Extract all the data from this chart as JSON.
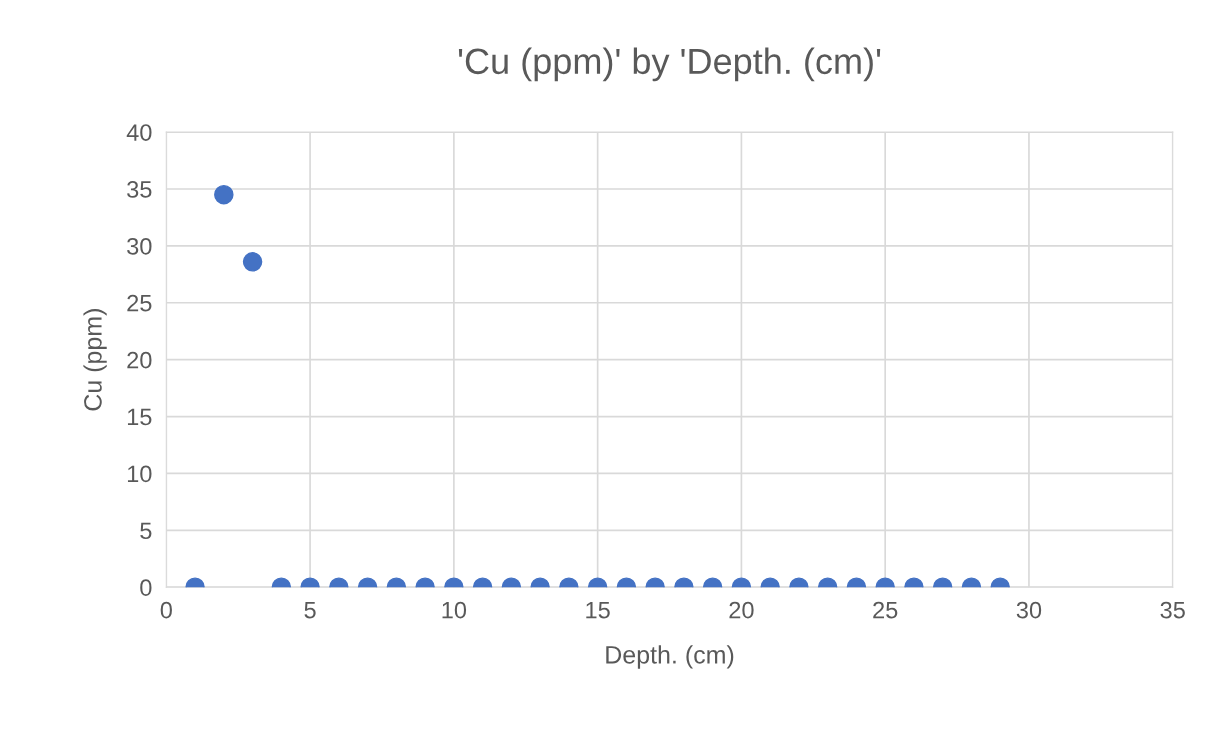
{
  "chart_data": {
    "type": "scatter",
    "title": "'Cu (ppm)' by 'Depth. (cm)'",
    "xlabel": "Depth. (cm)",
    "ylabel": "Cu (ppm)",
    "x": [
      1,
      2,
      3,
      4,
      5,
      6,
      7,
      8,
      9,
      10,
      11,
      12,
      13,
      14,
      15,
      16,
      17,
      18,
      19,
      20,
      21,
      22,
      23,
      24,
      25,
      26,
      27,
      28,
      29
    ],
    "series": [
      {
        "color": "#4472c4",
        "values": [
          0,
          34.5,
          28.6,
          0,
          0,
          0,
          0,
          0,
          0,
          0,
          0,
          0,
          0,
          0,
          0,
          0,
          0,
          0,
          0,
          0,
          0,
          0,
          0,
          0,
          0,
          0,
          0,
          0,
          0
        ]
      }
    ],
    "xlim": [
      0,
      35
    ],
    "xticks": [
      0,
      5,
      10,
      15,
      20,
      25,
      30,
      35
    ],
    "ylim": [
      0,
      40
    ],
    "yticks": [
      0,
      5,
      10,
      15,
      20,
      25,
      30,
      35,
      40
    ],
    "grid": true,
    "marker": "circle",
    "legend": false
  }
}
